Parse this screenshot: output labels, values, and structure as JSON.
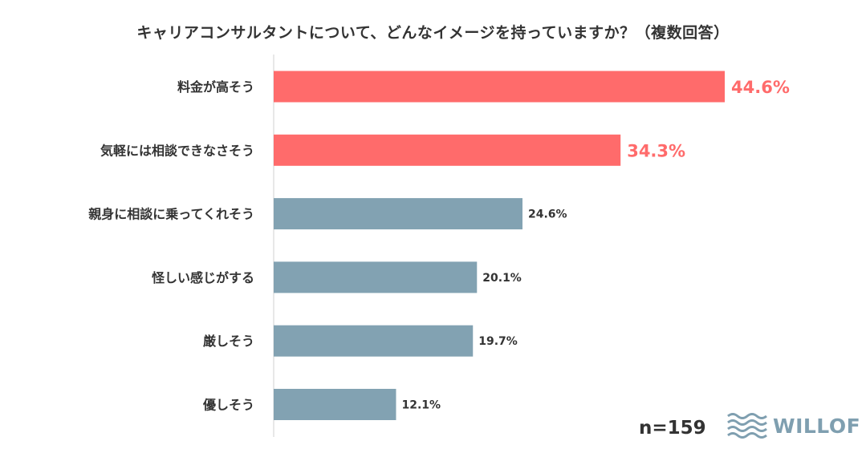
{
  "chart_data": {
    "type": "bar",
    "orientation": "horizontal",
    "title": "キャリアコンサルタントについて、どんなイメージを持っていますか？（複数回答）",
    "categories": [
      "料金が高そう",
      "気軽には相談できなさそう",
      "親身に相談に乗ってくれそう",
      "怪しい感じがする",
      "厳しそう",
      "優しそう"
    ],
    "values": [
      44.6,
      34.3,
      24.6,
      20.1,
      19.7,
      12.1
    ],
    "value_labels": [
      "44.6%",
      "34.3%",
      "24.6%",
      "20.1%",
      "19.7%",
      "12.1%"
    ],
    "highlighted": [
      true,
      true,
      false,
      false,
      false,
      false
    ],
    "unit": "%",
    "xlim": [
      0,
      52
    ],
    "grid": false,
    "colors": {
      "highlight": "#ff6b6b",
      "normal": "#82a2b2",
      "text": "#333333"
    }
  },
  "sample_size": "n=159",
  "logo": {
    "text": "WILLOF",
    "icon": "waves-icon",
    "color": "#7f9fb0"
  }
}
